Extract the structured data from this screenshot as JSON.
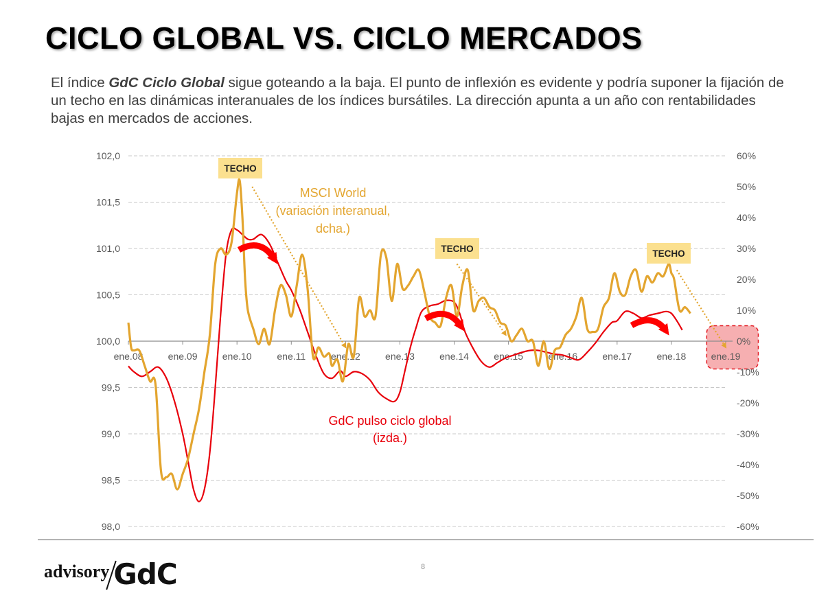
{
  "page": {
    "title": "CICLO GLOBAL VS. CICLO MERCADOS",
    "intro_pre": "El índice ",
    "intro_bold": "GdC Ciclo Global",
    "intro_post": " sigue goteando a la baja. El punto de inflexión es evidente y podría suponer la fijación de un techo en las dinámicas interanuales de los índices bursátiles. La dirección apunta a un año con rentabilidades bajas en mercados de acciones.",
    "page_number": "8",
    "logo_text_1": "advisory",
    "logo_text_2": "GdC"
  },
  "colors": {
    "gdc": "#e8000b",
    "msci": "#e3a52f",
    "techo_bg": "#fbe08f",
    "highlight": "#f4a1a3",
    "arrow": "#ff0000"
  },
  "chart_data": {
    "type": "line",
    "title": "",
    "x_ticks": [
      "ene.08",
      "ene.09",
      "ene.10",
      "ene.11",
      "ene.12",
      "ene.13",
      "ene.14",
      "ene.15",
      "ene.16",
      "ene.17",
      "ene.18",
      "ene.19"
    ],
    "y_left": {
      "range": [
        98.0,
        102.0
      ],
      "ticks": [
        "98,0",
        "98,5",
        "99,0",
        "99,5",
        "100,0",
        "100,5",
        "101,0",
        "101,5",
        "102,0"
      ]
    },
    "y_right": {
      "range": [
        -60,
        60
      ],
      "ticks": [
        "-60%",
        "-50%",
        "-40%",
        "-30%",
        "-20%",
        "-10%",
        "0%",
        "10%",
        "20%",
        "30%",
        "40%",
        "50%",
        "60%"
      ]
    },
    "series": [
      {
        "name": "GdC pulso ciclo global (izda.)",
        "label_lines": [
          "GdC pulso ciclo global",
          "(izda.)"
        ],
        "axis": "left",
        "color": "#e8000b",
        "x": [
          2008.0,
          2008.1,
          2008.25,
          2008.4,
          2008.55,
          2008.7,
          2008.85,
          2009.0,
          2009.1,
          2009.2,
          2009.3,
          2009.4,
          2009.5,
          2009.6,
          2009.7,
          2009.8,
          2009.9,
          2010.0,
          2010.1,
          2010.2,
          2010.3,
          2010.45,
          2010.6,
          2010.75,
          2010.9,
          2011.0,
          2011.15,
          2011.3,
          2011.45,
          2011.6,
          2011.75,
          2011.9,
          2012.0,
          2012.15,
          2012.3,
          2012.45,
          2012.6,
          2012.75,
          2012.9,
          2013.0,
          2013.1,
          2013.2,
          2013.3,
          2013.4,
          2013.55,
          2013.7,
          2013.85,
          2014.0,
          2014.1,
          2014.2,
          2014.35,
          2014.5,
          2014.65,
          2014.8,
          2014.95,
          2015.1,
          2015.25,
          2015.4,
          2015.55,
          2015.7,
          2015.85,
          2016.0,
          2016.15,
          2016.3,
          2016.45,
          2016.6,
          2016.75,
          2016.9,
          2017.0,
          2017.15,
          2017.3,
          2017.45,
          2017.6,
          2017.75,
          2017.9,
          2018.0,
          2018.1,
          2018.2
        ],
        "values": [
          99.73,
          99.67,
          99.62,
          99.67,
          99.72,
          99.6,
          99.35,
          99.0,
          98.7,
          98.4,
          98.27,
          98.4,
          98.8,
          99.5,
          100.3,
          100.95,
          101.2,
          101.2,
          101.15,
          101.1,
          101.1,
          101.15,
          101.05,
          100.85,
          100.65,
          100.55,
          100.35,
          100.1,
          99.85,
          99.65,
          99.6,
          99.68,
          99.62,
          99.67,
          99.65,
          99.58,
          99.45,
          99.38,
          99.35,
          99.45,
          99.7,
          99.95,
          100.15,
          100.32,
          100.38,
          100.4,
          100.44,
          100.42,
          100.3,
          100.1,
          99.92,
          99.78,
          99.72,
          99.77,
          99.82,
          99.85,
          99.88,
          99.9,
          99.9,
          99.88,
          99.86,
          99.85,
          99.82,
          99.8,
          99.88,
          99.98,
          100.1,
          100.2,
          100.22,
          100.32,
          100.3,
          100.25,
          100.28,
          100.3,
          100.32,
          100.3,
          100.22,
          100.12
        ]
      },
      {
        "name": "MSCI World (variación interanual, dcha.)",
        "label_lines": [
          "MSCI World",
          "(variación interanual,",
          "dcha.)"
        ],
        "axis": "right",
        "color": "#e3a52f",
        "x": [
          2008.0,
          2008.05,
          2008.1,
          2008.2,
          2008.3,
          2008.4,
          2008.5,
          2008.6,
          2008.7,
          2008.8,
          2008.9,
          2009.0,
          2009.1,
          2009.2,
          2009.3,
          2009.4,
          2009.5,
          2009.6,
          2009.7,
          2009.8,
          2009.9,
          2010.0,
          2010.05,
          2010.1,
          2010.15,
          2010.2,
          2010.3,
          2010.4,
          2010.5,
          2010.6,
          2010.7,
          2010.8,
          2010.9,
          2011.0,
          2011.1,
          2011.2,
          2011.3,
          2011.4,
          2011.5,
          2011.6,
          2011.7,
          2011.75,
          2011.85,
          2011.95,
          2012.05,
          2012.15,
          2012.25,
          2012.35,
          2012.45,
          2012.55,
          2012.65,
          2012.75,
          2012.85,
          2012.95,
          2013.05,
          2013.15,
          2013.25,
          2013.35,
          2013.45,
          2013.55,
          2013.65,
          2013.75,
          2013.85,
          2013.95,
          2014.05,
          2014.15,
          2014.25,
          2014.35,
          2014.45,
          2014.55,
          2014.65,
          2014.75,
          2014.85,
          2014.95,
          2015.05,
          2015.15,
          2015.25,
          2015.35,
          2015.45,
          2015.55,
          2015.65,
          2015.75,
          2015.85,
          2015.95,
          2016.05,
          2016.15,
          2016.25,
          2016.35,
          2016.45,
          2016.55,
          2016.65,
          2016.75,
          2016.85,
          2016.95,
          2017.05,
          2017.15,
          2017.25,
          2017.35,
          2017.45,
          2017.55,
          2017.65,
          2017.75,
          2017.85,
          2017.95,
          2018.0,
          2018.05,
          2018.15,
          2018.25,
          2018.35
        ],
        "values": [
          6,
          -2,
          -3,
          -3,
          -8,
          -13,
          -14,
          -42,
          -44,
          -43,
          -48,
          -43,
          -38,
          -30,
          -22,
          -10,
          2,
          25,
          30,
          28,
          32,
          48,
          52,
          40,
          20,
          10,
          4,
          -1,
          4,
          -1,
          10,
          18,
          15,
          8,
          18,
          28,
          17,
          -5,
          -2,
          -5,
          -4,
          -8,
          -6,
          -13,
          -1,
          -5,
          14,
          8,
          10,
          8,
          28,
          27,
          13,
          25,
          17,
          18,
          21,
          23,
          16,
          8,
          6,
          5,
          14,
          18,
          8,
          18,
          23,
          10,
          13,
          14,
          11,
          10,
          6,
          5,
          0,
          2,
          4,
          0,
          0,
          -8,
          0,
          -9,
          -3,
          -2,
          2,
          4,
          8,
          14,
          4,
          3,
          4,
          11,
          14,
          22,
          16,
          15,
          21,
          23,
          16,
          21,
          19,
          22,
          21,
          25,
          22,
          20,
          10,
          11,
          9
        ]
      }
    ],
    "annotations": [
      {
        "text": "TECHO",
        "at_x": 2010.15,
        "at_value": 52
      },
      {
        "text": "TECHO",
        "at_x": 2013.6,
        "at_value": 24
      },
      {
        "text": "TECHO",
        "at_x": 2017.95,
        "at_value": 22
      }
    ],
    "projection_target": {
      "x": 2019.0,
      "value": -2
    },
    "highlight_zone": {
      "x_from": 2018.65,
      "x_to": 2019.6,
      "value_from": -9,
      "value_to": 5
    }
  }
}
